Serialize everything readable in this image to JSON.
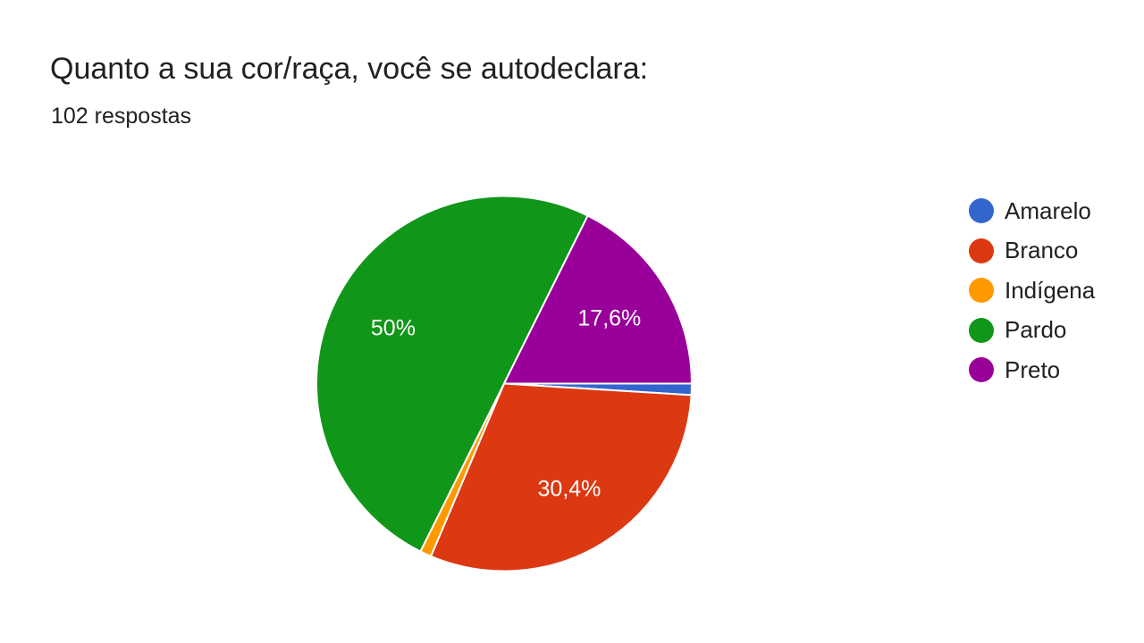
{
  "title": "Quanto a sua cor/raça, você se autodeclara:",
  "subtitle": "102 respostas",
  "chart_data": {
    "type": "pie",
    "title": "Quanto a sua cor/raça, você se autodeclara:",
    "subtitle": "102 respostas",
    "legend_position": "right",
    "slices": [
      {
        "label": "Amarelo",
        "value": 1,
        "percent_label": "",
        "color": "#3366CC"
      },
      {
        "label": "Branco",
        "value": 31,
        "percent_label": "30,4%",
        "color": "#DC3912"
      },
      {
        "label": "Indígena",
        "value": 1,
        "percent_label": "",
        "color": "#FF9900"
      },
      {
        "label": "Pardo",
        "value": 51,
        "percent_label": "50%",
        "color": "#109618"
      },
      {
        "label": "Preto",
        "value": 18,
        "percent_label": "17,6%",
        "color": "#990099"
      }
    ]
  }
}
